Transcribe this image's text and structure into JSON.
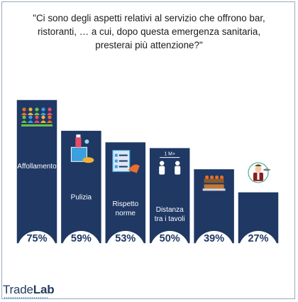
{
  "title_lines": [
    "\"Ci sono degli aspetti relativi al servizio che offrono bar,",
    "ristoranti, … a cui, dopo questa emergenza sanitaria,",
    "presterai più attenzione?\""
  ],
  "chart_data": {
    "type": "bar",
    "title": "\"Ci sono degli aspetti relativi al servizio che offrono bar, ristoranti, … a cui, dopo questa emergenza sanitaria, presterai più attenzione?\"",
    "categories": [
      [
        "Affollamento"
      ],
      [
        "Pulizia"
      ],
      [
        "Rispetto",
        "norme"
      ],
      [
        "Distanza",
        "tra i tavoli"
      ],
      [
        "Buffet"
      ],
      [
        "Personale"
      ]
    ],
    "values": [
      75,
      59,
      53,
      50,
      39,
      27
    ],
    "value_labels": [
      "75%",
      "59%",
      "53%",
      "50%",
      "39%",
      "27%"
    ],
    "icons": [
      "crowd-icon",
      "cleaning-icon",
      "checklist-icon",
      "distance-icon",
      "buffet-icon",
      "waiter-icon"
    ],
    "icon_text": "1 M+",
    "unit": "%",
    "grid": false,
    "legend": "none",
    "colors": {
      "bar": "#1f3864",
      "bar_border": "#ffffff",
      "circle": "#ffffff",
      "label_text": "#ffffff",
      "value_text": "#1f3864",
      "icon_accent": "#e96f2a"
    }
  },
  "logo": {
    "part1": "Trade",
    "part2": "Lab"
  }
}
